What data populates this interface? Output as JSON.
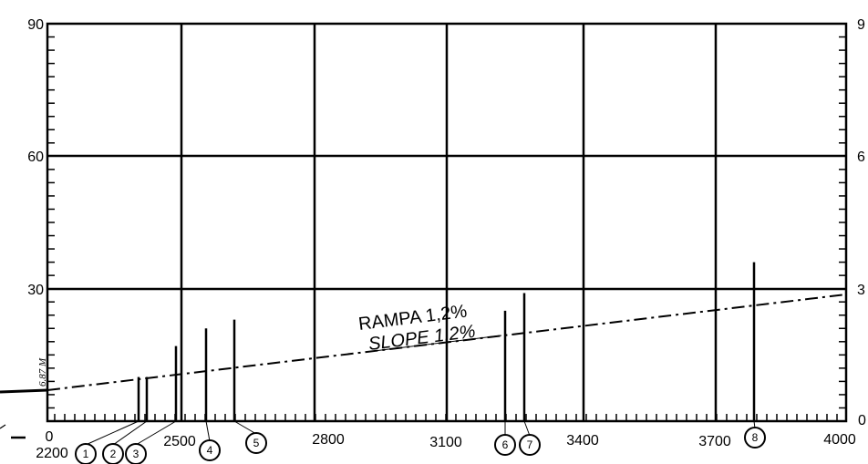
{
  "y_axis": {
    "left_ticks": [
      "90",
      "60",
      "30"
    ],
    "right_ticks": [
      "9",
      "6",
      "3",
      "0"
    ]
  },
  "x_axis": {
    "baseline_label": "0",
    "station_labels": [
      "2200",
      "2500",
      "2800",
      "3100",
      "3400",
      "3700",
      "4000"
    ]
  },
  "slope": {
    "line1": "RAMPA 1,2%",
    "line2": "SLOPE 1,2%"
  },
  "height_annotation": "6.87 M",
  "markers": [
    {
      "number": "1",
      "height_m": 10
    },
    {
      "number": "2",
      "height_m": 10
    },
    {
      "number": "3",
      "height_m": 17
    },
    {
      "number": "4",
      "height_m": 21
    },
    {
      "number": "5",
      "height_m": 23
    },
    {
      "number": "6",
      "height_m": 25
    },
    {
      "number": "7",
      "height_m": 29
    },
    {
      "number": "8",
      "height_m": 36
    }
  ]
}
